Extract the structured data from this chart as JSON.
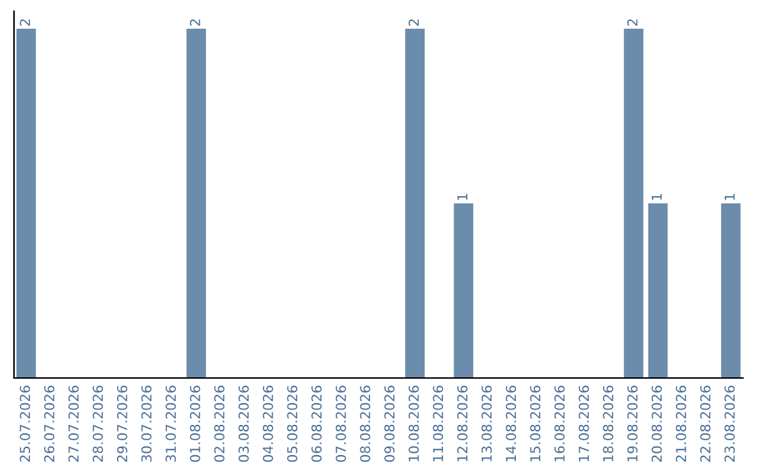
{
  "chart_data": {
    "type": "bar",
    "categories": [
      "25.07.2026",
      "26.07.2026",
      "27.07.2026",
      "28.07.2026",
      "29.07.2026",
      "30.07.2026",
      "31.07.2026",
      "01.08.2026",
      "02.08.2026",
      "03.08.2026",
      "04.08.2026",
      "05.08.2026",
      "06.08.2026",
      "07.08.2026",
      "08.08.2026",
      "09.08.2026",
      "10.08.2026",
      "11.08.2026",
      "12.08.2026",
      "13.08.2026",
      "14.08.2026",
      "15.08.2026",
      "16.08.2026",
      "17.08.2026",
      "18.08.2026",
      "19.08.2026",
      "20.08.2026",
      "21.08.2026",
      "22.08.2026",
      "23.08.2026"
    ],
    "values": [
      2,
      0,
      0,
      0,
      0,
      0,
      0,
      2,
      0,
      0,
      0,
      0,
      0,
      0,
      0,
      0,
      2,
      0,
      1,
      0,
      0,
      0,
      0,
      0,
      0,
      2,
      1,
      0,
      0,
      1
    ],
    "value_labels": [
      "2",
      null,
      null,
      null,
      null,
      null,
      null,
      "2",
      null,
      null,
      null,
      null,
      null,
      null,
      null,
      null,
      "2",
      null,
      "1",
      null,
      null,
      null,
      null,
      null,
      null,
      "2",
      "1",
      null,
      null,
      "1"
    ],
    "color": "#6b8cab",
    "tick_labels": "x",
    "grid": false
  }
}
